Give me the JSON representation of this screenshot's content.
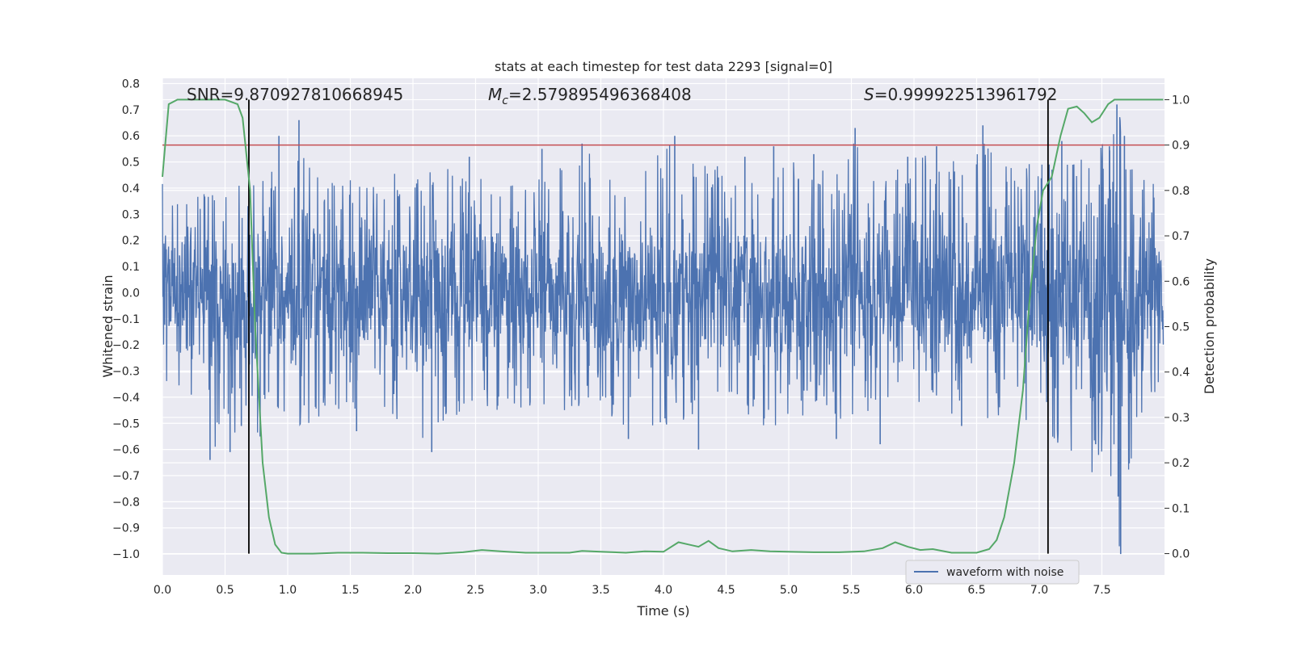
{
  "chart_data": {
    "type": "line",
    "title": "stats at each timestep for test data 2293 [signal=0]",
    "xlabel": "Time (s)",
    "ylabel_left": "Whitened strain",
    "ylabel_right": "Detection probability",
    "xlim": [
      0.0,
      8.0
    ],
    "ylim_left": [
      -1.08,
      0.82
    ],
    "ylim_right": [
      -0.047,
      1.047
    ],
    "x_ticks": [
      "0.0",
      "0.5",
      "1.0",
      "1.5",
      "2.0",
      "2.5",
      "3.0",
      "3.5",
      "4.0",
      "4.5",
      "5.0",
      "5.5",
      "6.0",
      "6.5",
      "7.0",
      "7.5"
    ],
    "y_ticks_left": [
      "0.8",
      "0.7",
      "0.6",
      "0.5",
      "0.4",
      "0.3",
      "0.2",
      "0.1",
      "0.0",
      "−0.1",
      "−0.2",
      "−0.3",
      "−0.4",
      "−0.5",
      "−0.6",
      "−0.7",
      "−0.8",
      "−0.9",
      "−1.0"
    ],
    "y_ticks_right": [
      "1.0",
      "0.9",
      "0.8",
      "0.7",
      "0.6",
      "0.5",
      "0.4",
      "0.3",
      "0.2",
      "0.1",
      "0.0"
    ],
    "grid": true,
    "annotations": {
      "snr": "SNR=9.870927810668945",
      "mc_symbol": "M",
      "mc_sub": "c",
      "mc_value": "=2.579895496368408",
      "s_symbol": "S",
      "s_value": "=0.999922513961792"
    },
    "threshold_prob": 0.9,
    "vlines_x": [
      0.69,
      7.07
    ],
    "series": [
      {
        "name": "waveform with noise",
        "axis": "left",
        "color": "#4c72b0",
        "envelope": {
          "x": [
            0.0,
            0.05,
            0.1,
            0.3,
            0.38,
            0.55,
            0.6,
            0.68,
            0.75,
            0.85,
            1.0,
            1.1,
            1.3,
            1.5,
            1.7,
            1.8,
            1.9,
            2.0,
            2.15,
            2.3,
            2.5,
            2.7,
            2.9,
            3.1,
            3.3,
            3.35,
            3.6,
            3.8,
            4.08,
            4.3,
            4.5,
            4.7,
            4.9,
            5.2,
            5.4,
            5.5,
            5.7,
            5.9,
            6.2,
            6.4,
            6.55,
            6.8,
            7.0,
            7.2,
            7.4,
            7.55,
            7.64,
            7.7,
            7.8,
            7.99
          ],
          "upper": [
            0.45,
            0.32,
            0.35,
            0.38,
            0.42,
            0.4,
            0.48,
            0.55,
            0.4,
            0.5,
            0.45,
            0.66,
            0.42,
            0.46,
            0.44,
            0.55,
            0.43,
            0.45,
            0.47,
            0.5,
            0.44,
            0.42,
            0.45,
            0.48,
            0.5,
            0.57,
            0.45,
            0.44,
            0.6,
            0.5,
            0.48,
            0.45,
            0.55,
            0.5,
            0.45,
            0.63,
            0.46,
            0.5,
            0.55,
            0.48,
            0.64,
            0.48,
            0.5,
            0.52,
            0.55,
            0.6,
            0.72,
            0.55,
            0.45,
            0.4
          ],
          "lower": [
            -0.34,
            -0.4,
            -0.38,
            -0.45,
            -0.64,
            -0.5,
            -0.61,
            -0.48,
            -0.55,
            -0.45,
            -0.5,
            -0.52,
            -0.48,
            -0.5,
            -0.46,
            -0.5,
            -0.48,
            -0.55,
            -0.61,
            -0.5,
            -0.45,
            -0.48,
            -0.5,
            -0.47,
            -0.45,
            -0.42,
            -0.48,
            -0.55,
            -0.5,
            -0.48,
            -0.46,
            -0.5,
            -0.52,
            -0.45,
            -0.48,
            -0.52,
            -0.48,
            -0.5,
            -0.47,
            -0.5,
            -0.6,
            -0.48,
            -0.55,
            -0.6,
            -0.7,
            -0.65,
            -1.0,
            -0.75,
            -0.5,
            -0.4
          ]
        },
        "spikes": [
          [
            0.38,
            -0.64
          ],
          [
            0.54,
            -0.61
          ],
          [
            0.63,
            -0.51
          ],
          [
            0.78,
            -0.55
          ],
          [
            0.93,
            0.6
          ],
          [
            1.09,
            0.66
          ],
          [
            1.55,
            -0.53
          ],
          [
            2.15,
            -0.61
          ],
          [
            2.45,
            0.52
          ],
          [
            3.03,
            0.55
          ],
          [
            3.35,
            0.57
          ],
          [
            3.72,
            -0.56
          ],
          [
            4.09,
            0.6
          ],
          [
            4.28,
            -0.6
          ],
          [
            4.65,
            0.52
          ],
          [
            4.88,
            0.56
          ],
          [
            5.2,
            0.53
          ],
          [
            5.38,
            -0.56
          ],
          [
            5.53,
            0.63
          ],
          [
            5.73,
            -0.58
          ],
          [
            5.95,
            0.52
          ],
          [
            6.18,
            0.56
          ],
          [
            6.38,
            -0.51
          ],
          [
            6.55,
            0.64
          ],
          [
            7.18,
            0.58
          ],
          [
            7.45,
            -0.58
          ],
          [
            7.56,
            0.56
          ],
          [
            7.62,
            0.72
          ],
          [
            7.65,
            -1.0
          ],
          [
            7.63,
            -0.78
          ],
          [
            7.68,
            0.6
          ]
        ]
      },
      {
        "name": "",
        "axis": "right",
        "color": "#55a868",
        "x": [
          0.0,
          0.05,
          0.12,
          0.2,
          0.3,
          0.4,
          0.5,
          0.6,
          0.64,
          0.7,
          0.74,
          0.8,
          0.85,
          0.9,
          0.95,
          1.0,
          1.2,
          1.4,
          1.6,
          1.8,
          2.0,
          2.2,
          2.4,
          2.55,
          2.7,
          2.9,
          3.1,
          3.25,
          3.35,
          3.5,
          3.7,
          3.85,
          4.0,
          4.12,
          4.2,
          4.28,
          4.36,
          4.44,
          4.55,
          4.7,
          4.85,
          5.0,
          5.2,
          5.4,
          5.6,
          5.75,
          5.85,
          5.95,
          6.05,
          6.15,
          6.3,
          6.5,
          6.6,
          6.66,
          6.72,
          6.8,
          6.87,
          6.92,
          6.98,
          7.03,
          7.1,
          7.17,
          7.23,
          7.3,
          7.36,
          7.42,
          7.48,
          7.55,
          7.6,
          7.7,
          7.8,
          7.99
        ],
        "y": [
          0.83,
          0.99,
          1.0,
          1.0,
          1.0,
          1.0,
          1.0,
          0.99,
          0.96,
          0.8,
          0.5,
          0.2,
          0.08,
          0.02,
          0.002,
          0.0,
          0.0,
          0.002,
          0.002,
          0.001,
          0.001,
          0.0,
          0.003,
          0.008,
          0.005,
          0.002,
          0.002,
          0.002,
          0.006,
          0.004,
          0.002,
          0.005,
          0.004,
          0.025,
          0.02,
          0.015,
          0.028,
          0.012,
          0.005,
          0.008,
          0.005,
          0.004,
          0.003,
          0.003,
          0.005,
          0.012,
          0.025,
          0.015,
          0.008,
          0.01,
          0.002,
          0.002,
          0.01,
          0.03,
          0.08,
          0.2,
          0.36,
          0.55,
          0.72,
          0.8,
          0.83,
          0.92,
          0.98,
          0.985,
          0.97,
          0.95,
          0.96,
          0.99,
          1.0,
          1.0,
          1.0,
          1.0
        ]
      }
    ],
    "legend": {
      "placement": "lower-right",
      "entries": [
        "waveform with noise"
      ]
    },
    "colors": {
      "background": "#eaeaf2",
      "grid": "#ffffff",
      "threshold": "#c44e52",
      "vline": "#000000",
      "text": "#262626"
    }
  }
}
